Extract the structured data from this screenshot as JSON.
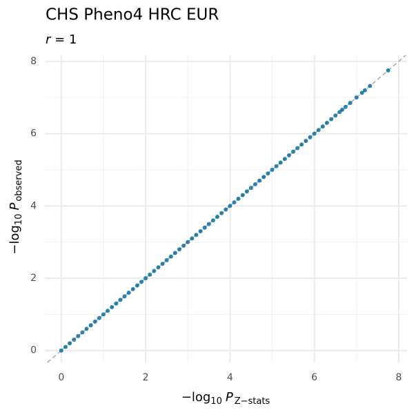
{
  "chart_data": {
    "type": "scatter",
    "title": "CHS Pheno4 HRC EUR",
    "subtitle": [
      "r",
      "= 1"
    ],
    "xlabel": [
      "−log",
      "10",
      "P",
      "Z−stats"
    ],
    "ylabel": [
      "−log",
      "10",
      "P",
      "observed"
    ],
    "xlim": [
      -0.39,
      8.2
    ],
    "ylim": [
      -0.33,
      8.17
    ],
    "xticks": [
      0,
      2,
      4,
      6,
      8
    ],
    "yticks": [
      0,
      2,
      4,
      6,
      8
    ],
    "minor_xticks": [
      1,
      3,
      5,
      7
    ],
    "minor_yticks": [
      1,
      3,
      5,
      7
    ],
    "grid": true,
    "color": "#0a6fa0",
    "series": [
      {
        "x": [
          0,
          0.1,
          0.2,
          0.3,
          0.4,
          0.5,
          0.6,
          0.7,
          0.8,
          0.9,
          1,
          1.1,
          1.2,
          1.3,
          1.4,
          1.5,
          1.6,
          1.7,
          1.8,
          1.9,
          2,
          2.1,
          2.2,
          2.3,
          2.4,
          2.5,
          2.6,
          2.7,
          2.8,
          2.9,
          3,
          3.1,
          3.2,
          3.3,
          3.4,
          3.5,
          3.6,
          3.7,
          3.8,
          3.9,
          4,
          4.1,
          4.2,
          4.3,
          4.4,
          4.5,
          4.6,
          4.7,
          4.8,
          4.9,
          5,
          5.1,
          5.2,
          5.3,
          5.4,
          5.5,
          5.6,
          5.7,
          5.8,
          5.9,
          6,
          6.1,
          6.2,
          6.3,
          6.4,
          6.5,
          6.6,
          6.66,
          6.74,
          6.85,
          7.0,
          7.13,
          7.2,
          7.32,
          7.75
        ],
        "values": [
          0,
          0.1,
          0.2,
          0.3,
          0.4,
          0.5,
          0.6,
          0.7,
          0.8,
          0.9,
          1,
          1.1,
          1.2,
          1.3,
          1.4,
          1.5,
          1.6,
          1.7,
          1.8,
          1.9,
          2,
          2.1,
          2.2,
          2.3,
          2.4,
          2.5,
          2.6,
          2.7,
          2.8,
          2.9,
          3,
          3.1,
          3.2,
          3.3,
          3.4,
          3.5,
          3.6,
          3.7,
          3.8,
          3.9,
          4,
          4.1,
          4.2,
          4.3,
          4.4,
          4.5,
          4.6,
          4.7,
          4.8,
          4.9,
          5,
          5.1,
          5.2,
          5.3,
          5.4,
          5.5,
          5.6,
          5.7,
          5.8,
          5.9,
          6,
          6.1,
          6.2,
          6.3,
          6.4,
          6.5,
          6.6,
          6.66,
          6.74,
          6.85,
          7.0,
          7.13,
          7.2,
          7.32,
          7.75
        ]
      }
    ]
  }
}
